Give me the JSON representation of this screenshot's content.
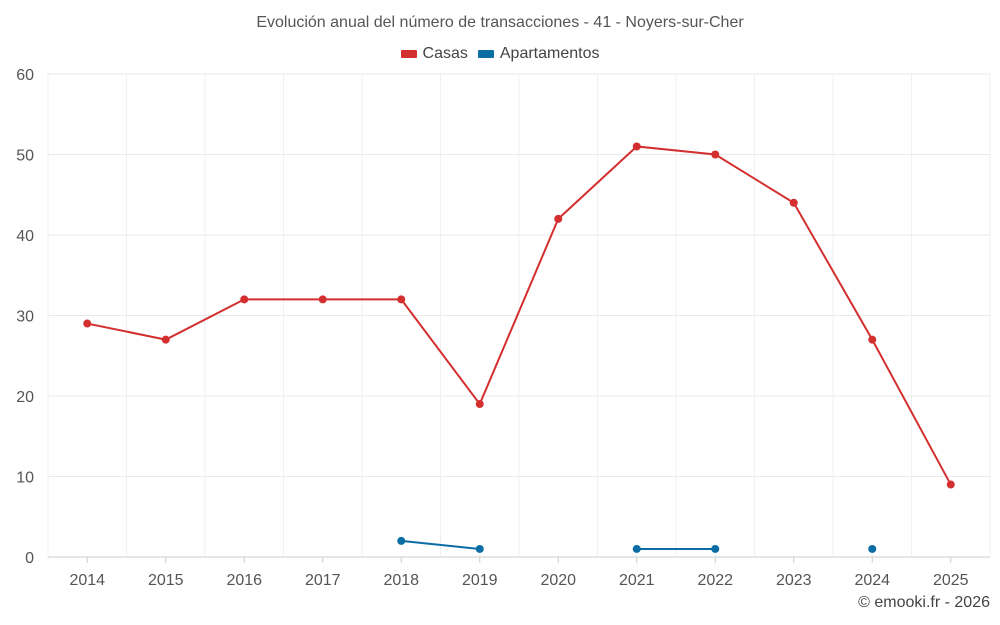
{
  "chart_data": {
    "type": "line",
    "title": "Evolución anual del número de transacciones - 41 - Noyers-sur-Cher",
    "categories": [
      "2014",
      "2015",
      "2016",
      "2017",
      "2018",
      "2019",
      "2020",
      "2021",
      "2022",
      "2023",
      "2024",
      "2025"
    ],
    "ylim": [
      0,
      60
    ],
    "yticks": [
      0,
      10,
      20,
      30,
      40,
      50,
      60
    ],
    "series": [
      {
        "name": "Casas",
        "color": "#d32f2f",
        "values": [
          29,
          27,
          32,
          32,
          32,
          19,
          42,
          51,
          50,
          44,
          27,
          9
        ]
      },
      {
        "name": "Apartamentos",
        "color": "#0a6ea5",
        "values": [
          null,
          null,
          null,
          null,
          2,
          1,
          null,
          1,
          1,
          null,
          1,
          null
        ]
      }
    ],
    "grid": true,
    "legend_position": "top-center"
  },
  "credit": "© emooki.fr - 2026"
}
